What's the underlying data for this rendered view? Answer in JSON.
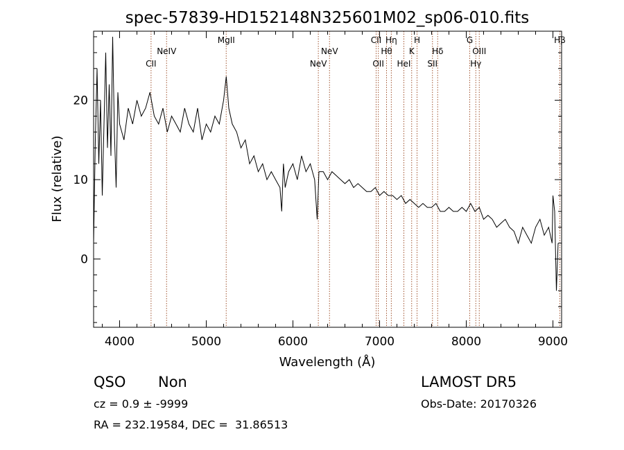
{
  "chart_data": {
    "type": "line",
    "title": "spec-57839-HD152148N325601M02_sp06-010.fits",
    "xlabel": "Wavelength (Å)",
    "ylabel": "Flux (relative)",
    "xlim": [
      3700,
      9100
    ],
    "ylim": [
      -8.6,
      28.7
    ],
    "x_ticks": [
      4000,
      5000,
      6000,
      7000,
      8000,
      9000
    ],
    "y_ticks": [
      0,
      10,
      20
    ],
    "grid": false,
    "legend": "none",
    "series": [
      {
        "color": "#000000",
        "x": [
          3700,
          3720,
          3740,
          3760,
          3780,
          3800,
          3820,
          3840,
          3860,
          3880,
          3900,
          3920,
          3940,
          3960,
          3980,
          4000,
          4050,
          4100,
          4150,
          4200,
          4250,
          4300,
          4350,
          4400,
          4450,
          4500,
          4550,
          4600,
          4650,
          4700,
          4750,
          4800,
          4850,
          4900,
          4950,
          5000,
          5050,
          5100,
          5150,
          5200,
          5230,
          5260,
          5300,
          5350,
          5400,
          5450,
          5500,
          5550,
          5600,
          5650,
          5700,
          5750,
          5800,
          5850,
          5870,
          5890,
          5910,
          5950,
          6000,
          6050,
          6100,
          6150,
          6200,
          6250,
          6280,
          6300,
          6350,
          6400,
          6450,
          6500,
          6550,
          6600,
          6650,
          6700,
          6750,
          6800,
          6850,
          6900,
          6950,
          7000,
          7050,
          7100,
          7150,
          7200,
          7250,
          7300,
          7350,
          7400,
          7450,
          7500,
          7550,
          7600,
          7650,
          7700,
          7750,
          7800,
          7850,
          7900,
          7950,
          8000,
          8050,
          8100,
          8150,
          8200,
          8250,
          8300,
          8350,
          8400,
          8450,
          8500,
          8550,
          8600,
          8650,
          8700,
          8750,
          8800,
          8850,
          8900,
          8950,
          8990,
          9000,
          9020,
          9040,
          9060
        ],
        "values": [
          2,
          15,
          24,
          12,
          20,
          8,
          17,
          26,
          14,
          22,
          13,
          28,
          16,
          9,
          21,
          17,
          15,
          19,
          17,
          20,
          18,
          19,
          21,
          18,
          17,
          19,
          16,
          18,
          17,
          16,
          19,
          17,
          16,
          19,
          15,
          17,
          16,
          18,
          17,
          20,
          23,
          19,
          17,
          16,
          14,
          15,
          12,
          13,
          11,
          12,
          10,
          11,
          10,
          9,
          6,
          12,
          9,
          11,
          12,
          10,
          13,
          11,
          12,
          10,
          5,
          11,
          11,
          10,
          11,
          10.5,
          10,
          9.5,
          10,
          9,
          9.5,
          9,
          8.5,
          8.5,
          9,
          8,
          8.5,
          8,
          8,
          7.5,
          8,
          7,
          7.5,
          7,
          6.5,
          7,
          6.5,
          6.5,
          7,
          6,
          6,
          6.5,
          6,
          6,
          6.5,
          6,
          7,
          6,
          6.5,
          5,
          5.5,
          5,
          4,
          4.5,
          5,
          4,
          3.5,
          2,
          4,
          3,
          2,
          4,
          5,
          3,
          4,
          2,
          8,
          6,
          -4,
          2
        ]
      }
    ],
    "lines": [
      {
        "label": "CII",
        "x": 4363,
        "row": 3
      },
      {
        "label": "NeIV",
        "x": 4542,
        "row": 2
      },
      {
        "label": "MgII",
        "x": 5230,
        "row": 1
      },
      {
        "label": "NeV",
        "x": 6293,
        "row": 3
      },
      {
        "label": "NeV",
        "x": 6422,
        "row": 2
      },
      {
        "label": "CII",
        "x": 6960,
        "row": 1
      },
      {
        "label": "OII",
        "x": 6985,
        "row": 3
      },
      {
        "label": "Hθ",
        "x": 7080,
        "row": 2
      },
      {
        "label": "Hη",
        "x": 7135,
        "row": 1
      },
      {
        "label": "HeI",
        "x": 7280,
        "row": 3
      },
      {
        "label": "K",
        "x": 7370,
        "row": 2
      },
      {
        "label": "H",
        "x": 7432,
        "row": 1
      },
      {
        "label": "SII",
        "x": 7610,
        "row": 3
      },
      {
        "label": "Hδ",
        "x": 7670,
        "row": 2
      },
      {
        "label": "G",
        "x": 8040,
        "row": 1
      },
      {
        "label": "Hγ",
        "x": 8110,
        "row": 3
      },
      {
        "label": "OIII",
        "x": 8150,
        "row": 2
      },
      {
        "label": "Hβ",
        "x": 9080,
        "row": 1
      }
    ]
  },
  "info": {
    "class": "QSO",
    "subclass": "Non",
    "survey": "LAMOST DR5",
    "cz": "cz = 0.9 ± -9999",
    "obs_date": "Obs-Date: 20170326",
    "coords": "RA = 232.19584, DEC =  31.86513"
  },
  "colors": {
    "spectrum": "#000000",
    "line_marker": "#a0522d"
  }
}
